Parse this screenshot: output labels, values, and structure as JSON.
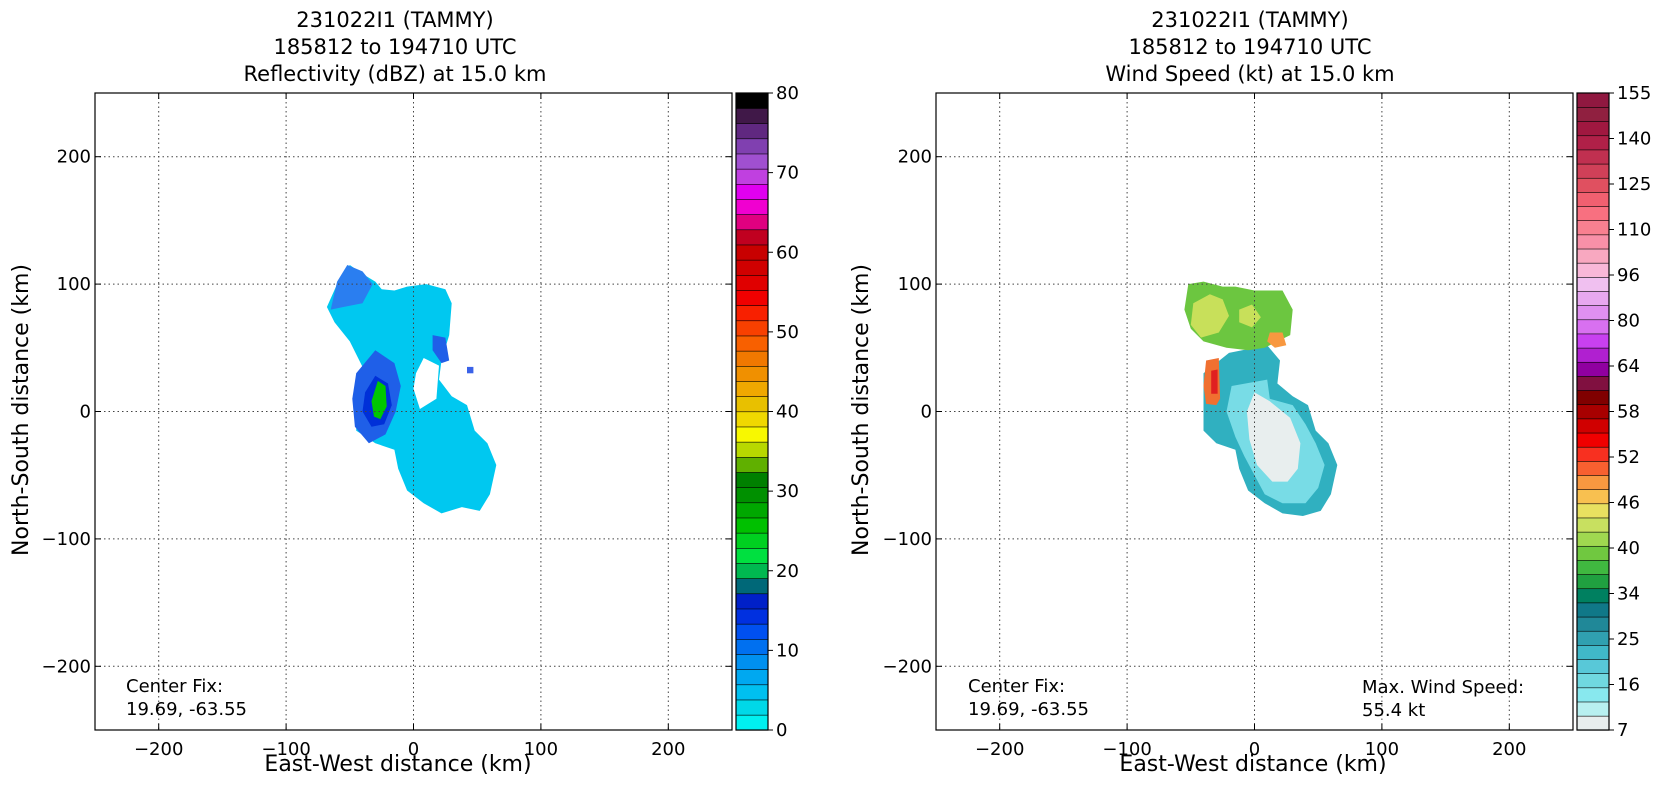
{
  "chart_data": [
    {
      "type": "heatmap",
      "title_lines": [
        "231022I1 (TAMMY)",
        "185812 to 194710 UTC",
        "Reflectivity (dBZ) at 15.0 km"
      ],
      "xlabel": "East-West distance (km)",
      "ylabel": "North-South distance (km)",
      "xlim": [
        -250,
        250
      ],
      "ylim": [
        -250,
        250
      ],
      "xticks": [
        -200,
        -100,
        0,
        100,
        200
      ],
      "yticks": [
        -200,
        -100,
        0,
        100,
        200
      ],
      "xtick_labels": [
        "−200",
        "−100",
        "0",
        "100",
        "200"
      ],
      "ytick_labels": [
        "−200",
        "−100",
        "0",
        "100",
        "200"
      ],
      "grid": true,
      "annotation": {
        "label": "Center Fix:",
        "value": "19.69, -63.55"
      },
      "colorbar": {
        "tick_labels": [
          "0",
          "10",
          "20",
          "30",
          "40",
          "50",
          "60",
          "70",
          "80"
        ],
        "colors": [
          "#00f0f0",
          "#00d8e8",
          "#00c0f0",
          "#00a8f0",
          "#0090f0",
          "#0070f0",
          "#0050f0",
          "#0030e0",
          "#0020c8",
          "#006878",
          "#00b850",
          "#00e040",
          "#00d020",
          "#00c000",
          "#00a800",
          "#009000",
          "#008000",
          "#60b000",
          "#b8d800",
          "#f8f800",
          "#f0d800",
          "#e8c000",
          "#f0a800",
          "#f09000",
          "#f07800",
          "#f86000",
          "#f84000",
          "#f82000",
          "#f00000",
          "#e00000",
          "#d00000",
          "#c80000",
          "#c00020",
          "#e00080",
          "#f000d0",
          "#e000f0",
          "#c040e0",
          "#a050d0",
          "#8040b0",
          "#602880",
          "#401848",
          "#000000"
        ]
      },
      "contours": [
        {
          "fill": "#00c8f0",
          "points": [
            [
              -60,
              100
            ],
            [
              -50,
              115
            ],
            [
              -40,
              108
            ],
            [
              -30,
              102
            ],
            [
              -25,
              96
            ],
            [
              -15,
              95
            ],
            [
              -5,
              98
            ],
            [
              10,
              100
            ],
            [
              25,
              96
            ],
            [
              30,
              85
            ],
            [
              28,
              60
            ],
            [
              22,
              40
            ],
            [
              20,
              25
            ],
            [
              30,
              12
            ],
            [
              42,
              5
            ],
            [
              48,
              -15
            ],
            [
              58,
              -25
            ],
            [
              65,
              -42
            ],
            [
              60,
              -65
            ],
            [
              52,
              -78
            ],
            [
              38,
              -75
            ],
            [
              22,
              -80
            ],
            [
              8,
              -72
            ],
            [
              -5,
              -62
            ],
            [
              -12,
              -45
            ],
            [
              -15,
              -30
            ],
            [
              -30,
              -25
            ],
            [
              -45,
              -15
            ],
            [
              -45,
              5
            ],
            [
              -40,
              35
            ],
            [
              -50,
              55
            ],
            [
              -62,
              70
            ],
            [
              -68,
              82
            ]
          ]
        },
        {
          "fill": "#2a7ef0",
          "points": [
            [
              -60,
              102
            ],
            [
              -52,
              115
            ],
            [
              -40,
              110
            ],
            [
              -32,
              100
            ],
            [
              -40,
              85
            ],
            [
              -55,
              82
            ],
            [
              -65,
              80
            ]
          ]
        },
        {
          "fill": "#1f5fe8",
          "points": [
            [
              -45,
              30
            ],
            [
              -30,
              48
            ],
            [
              -15,
              38
            ],
            [
              -10,
              20
            ],
            [
              -14,
              0
            ],
            [
              -22,
              -18
            ],
            [
              -35,
              -25
            ],
            [
              -46,
              -12
            ],
            [
              -48,
              10
            ]
          ]
        },
        {
          "fill": "#0030d8",
          "points": [
            [
              -38,
              15
            ],
            [
              -30,
              28
            ],
            [
              -20,
              22
            ],
            [
              -17,
              5
            ],
            [
              -23,
              -10
            ],
            [
              -33,
              -12
            ],
            [
              -40,
              0
            ]
          ]
        },
        {
          "fill": "#00c800",
          "points": [
            [
              -33,
              8
            ],
            [
              -28,
              24
            ],
            [
              -22,
              20
            ],
            [
              -21,
              4
            ],
            [
              -26,
              -6
            ],
            [
              -31,
              -4
            ]
          ]
        },
        {
          "fill": "#1f5fe8",
          "points": [
            [
              15,
              60
            ],
            [
              25,
              58
            ],
            [
              28,
              40
            ],
            [
              22,
              38
            ],
            [
              15,
              48
            ]
          ]
        },
        {
          "fill": "#ffffff",
          "points": [
            [
              8,
              42
            ],
            [
              20,
              36
            ],
            [
              18,
              10
            ],
            [
              5,
              2
            ],
            [
              0,
              18
            ],
            [
              2,
              30
            ]
          ]
        },
        {
          "fill": "#3a62e8",
          "points": [
            [
              42,
              35
            ],
            [
              47,
              35
            ],
            [
              47,
              30
            ],
            [
              42,
              30
            ]
          ]
        }
      ]
    },
    {
      "type": "heatmap",
      "title_lines": [
        "231022I1 (TAMMY)",
        "185812 to 194710 UTC",
        "Wind Speed (kt) at 15.0 km"
      ],
      "xlabel": "East-West distance (km)",
      "ylabel": "North-South distance (km)",
      "xlim": [
        -250,
        250
      ],
      "ylim": [
        -250,
        250
      ],
      "xticks": [
        -200,
        -100,
        0,
        100,
        200
      ],
      "yticks": [
        -200,
        -100,
        0,
        100,
        200
      ],
      "xtick_labels": [
        "−200",
        "−100",
        "0",
        "100",
        "200"
      ],
      "ytick_labels": [
        "−200",
        "−100",
        "0",
        "100",
        "200"
      ],
      "grid": true,
      "annotation": {
        "label": "Center Fix:",
        "value": "19.69, -63.55"
      },
      "max_wind": {
        "label": "Max. Wind Speed:",
        "value": "55.4 kt"
      },
      "colorbar": {
        "tick_labels": [
          "7",
          "16",
          "25",
          "34",
          "40",
          "46",
          "52",
          "58",
          "64",
          "80",
          "96",
          "110",
          "125",
          "140",
          "155"
        ],
        "colors": [
          "#e8eeee",
          "#b8f0f0",
          "#88e8ee",
          "#70d8e0",
          "#58c8d8",
          "#40b8c8",
          "#30a0b0",
          "#208898",
          "#107888",
          "#008060",
          "#20a040",
          "#40b840",
          "#70c840",
          "#a0d850",
          "#c8e060",
          "#e8e060",
          "#f8c050",
          "#f89840",
          "#f86030",
          "#f83020",
          "#f00000",
          "#d00000",
          "#a80000",
          "#800000",
          "#801040",
          "#9000a0",
          "#b020d0",
          "#c840f0",
          "#d870f0",
          "#e090f0",
          "#e8a8f0",
          "#f0c0f0",
          "#f8b8d8",
          "#f8a8c0",
          "#f890a8",
          "#f88090",
          "#f87080",
          "#f06070",
          "#e05060",
          "#d04058",
          "#c03050",
          "#b02048",
          "#a01840",
          "#902040",
          "#901840"
        ]
      },
      "contours": [
        {
          "fill": "#30b0c0",
          "points": [
            [
              -40,
              30
            ],
            [
              -20,
              46
            ],
            [
              10,
              52
            ],
            [
              20,
              40
            ],
            [
              18,
              22
            ],
            [
              30,
              12
            ],
            [
              42,
              5
            ],
            [
              48,
              -15
            ],
            [
              58,
              -25
            ],
            [
              65,
              -42
            ],
            [
              60,
              -65
            ],
            [
              52,
              -78
            ],
            [
              38,
              -82
            ],
            [
              22,
              -80
            ],
            [
              8,
              -72
            ],
            [
              -5,
              -62
            ],
            [
              -12,
              -45
            ],
            [
              -15,
              -30
            ],
            [
              -30,
              -25
            ],
            [
              -40,
              -15
            ],
            [
              -40,
              5
            ]
          ]
        },
        {
          "fill": "#78dce6",
          "points": [
            [
              -18,
              20
            ],
            [
              10,
              25
            ],
            [
              12,
              10
            ],
            [
              30,
              5
            ],
            [
              40,
              -10
            ],
            [
              48,
              -25
            ],
            [
              55,
              -42
            ],
            [
              50,
              -60
            ],
            [
              40,
              -72
            ],
            [
              22,
              -72
            ],
            [
              8,
              -65
            ],
            [
              0,
              -50
            ],
            [
              -8,
              -35
            ],
            [
              -15,
              -20
            ],
            [
              -22,
              0
            ]
          ]
        },
        {
          "fill": "#e8eeee",
          "points": [
            [
              0,
              15
            ],
            [
              12,
              8
            ],
            [
              28,
              -5
            ],
            [
              36,
              -25
            ],
            [
              34,
              -45
            ],
            [
              26,
              -55
            ],
            [
              14,
              -55
            ],
            [
              2,
              -42
            ],
            [
              -4,
              -22
            ],
            [
              -6,
              0
            ]
          ]
        },
        {
          "fill": "#6cc640",
          "points": [
            [
              -52,
              100
            ],
            [
              -40,
              102
            ],
            [
              -25,
              98
            ],
            [
              -15,
              98
            ],
            [
              0,
              95
            ],
            [
              22,
              95
            ],
            [
              30,
              80
            ],
            [
              28,
              60
            ],
            [
              18,
              55
            ],
            [
              8,
              50
            ],
            [
              -5,
              48
            ],
            [
              -22,
              50
            ],
            [
              -40,
              55
            ],
            [
              -50,
              65
            ],
            [
              -55,
              80
            ]
          ]
        },
        {
          "fill": "#c8e05a",
          "points": [
            [
              -48,
              85
            ],
            [
              -35,
              92
            ],
            [
              -25,
              88
            ],
            [
              -20,
              75
            ],
            [
              -28,
              62
            ],
            [
              -42,
              58
            ],
            [
              -50,
              68
            ]
          ]
        },
        {
          "fill": "#c8e05a",
          "points": [
            [
              -12,
              80
            ],
            [
              -2,
              84
            ],
            [
              5,
              74
            ],
            [
              -2,
              66
            ],
            [
              -12,
              70
            ]
          ]
        },
        {
          "fill": "#f89840",
          "points": [
            [
              12,
              62
            ],
            [
              22,
              62
            ],
            [
              25,
              52
            ],
            [
              16,
              50
            ],
            [
              10,
              55
            ]
          ]
        },
        {
          "fill": "#f07030",
          "points": [
            [
              -38,
              40
            ],
            [
              -28,
              42
            ],
            [
              -27,
              10
            ],
            [
              -30,
              5
            ],
            [
              -38,
              6
            ],
            [
              -40,
              20
            ]
          ]
        },
        {
          "fill": "#e02020",
          "points": [
            [
              -34,
              32
            ],
            [
              -29,
              33
            ],
            [
              -29,
              14
            ],
            [
              -34,
              14
            ]
          ]
        }
      ]
    }
  ]
}
